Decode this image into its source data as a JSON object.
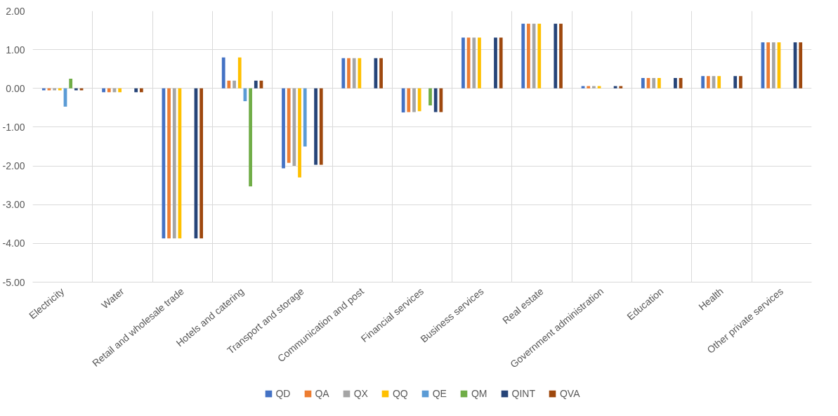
{
  "chart_data": {
    "type": "bar",
    "categories": [
      "Electricity",
      "Water",
      "Retail and wholesale trade",
      "Hotels and catering",
      "Transport and storage",
      "Communication and post",
      "Financial services",
      "Business services",
      "Real estate",
      "Government administration",
      "Education",
      "Health",
      "Other private services"
    ],
    "series": [
      {
        "name": "QD",
        "color": "#4472c4",
        "values": [
          -0.05,
          -0.1,
          -3.87,
          0.8,
          -2.06,
          0.78,
          -0.62,
          1.31,
          1.67,
          0.06,
          0.27,
          0.32,
          1.19
        ]
      },
      {
        "name": "QA",
        "color": "#ed7d31",
        "values": [
          -0.05,
          -0.1,
          -3.87,
          0.2,
          -1.92,
          0.78,
          -0.61,
          1.31,
          1.67,
          0.06,
          0.27,
          0.32,
          1.19
        ]
      },
      {
        "name": "QX",
        "color": "#a5a5a5",
        "values": [
          -0.05,
          -0.1,
          -3.87,
          0.2,
          -2.0,
          0.78,
          -0.61,
          1.31,
          1.67,
          0.06,
          0.27,
          0.32,
          1.19
        ]
      },
      {
        "name": "QQ",
        "color": "#ffc000",
        "values": [
          -0.05,
          -0.1,
          -3.87,
          0.8,
          -2.3,
          0.78,
          -0.59,
          1.31,
          1.67,
          0.06,
          0.27,
          0.32,
          1.19
        ]
      },
      {
        "name": "QE",
        "color": "#5b9bd5",
        "values": [
          -0.47,
          null,
          null,
          -0.33,
          -1.5,
          null,
          null,
          null,
          null,
          null,
          null,
          null,
          null
        ]
      },
      {
        "name": "QM",
        "color": "#70ad47",
        "values": [
          0.25,
          null,
          null,
          -2.53,
          null,
          null,
          -0.44,
          null,
          null,
          null,
          null,
          null,
          null
        ]
      },
      {
        "name": "QINT",
        "color": "#264478",
        "values": [
          -0.05,
          -0.1,
          -3.87,
          0.2,
          -1.97,
          0.78,
          -0.61,
          1.31,
          1.67,
          0.06,
          0.27,
          0.32,
          1.19
        ]
      },
      {
        "name": "QVA",
        "color": "#9e480e",
        "values": [
          -0.05,
          -0.1,
          -3.87,
          0.2,
          -1.97,
          0.78,
          -0.61,
          1.31,
          1.67,
          0.06,
          0.27,
          0.32,
          1.19
        ]
      }
    ],
    "ylim": [
      -5,
      2
    ],
    "yticks": [
      {
        "value": 2,
        "label": "2.00"
      },
      {
        "value": 1,
        "label": "1.00"
      },
      {
        "value": 0,
        "label": "0.00"
      },
      {
        "value": -1,
        "label": "-1.00"
      },
      {
        "value": -2,
        "label": "-2.00"
      },
      {
        "value": -3,
        "label": "-3.00"
      },
      {
        "value": -4,
        "label": "-4.00"
      },
      {
        "value": -5,
        "label": "-5.00"
      }
    ],
    "grid": true,
    "legend": "bottom"
  }
}
